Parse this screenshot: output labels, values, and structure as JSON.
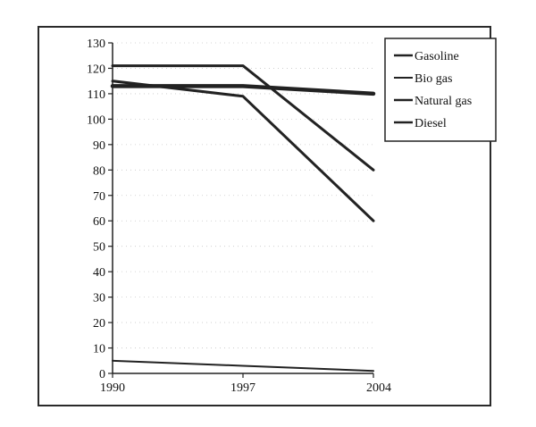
{
  "chart_data": {
    "type": "line",
    "x": [
      "1990",
      "1997",
      "2004"
    ],
    "ylim": [
      0,
      130
    ],
    "yticks": [
      "0",
      "10",
      "20",
      "30",
      "40",
      "50",
      "60",
      "70",
      "80",
      "90",
      "100",
      "110",
      "120",
      "130"
    ],
    "grid": true,
    "legend_position": "top-right",
    "series": [
      {
        "name": "Gasoline",
        "values": [
          121,
          121,
          80
        ],
        "color": "#222222",
        "stroke": 3
      },
      {
        "name": "Bio gas",
        "values": [
          5,
          3,
          1
        ],
        "color": "#222222",
        "stroke": 2
      },
      {
        "name": "Natural gas",
        "values": [
          115,
          109,
          60
        ],
        "color": "#222222",
        "stroke": 3
      },
      {
        "name": "Diesel",
        "values": [
          113,
          113,
          110
        ],
        "color": "#222222",
        "stroke": 4.5
      }
    ]
  }
}
